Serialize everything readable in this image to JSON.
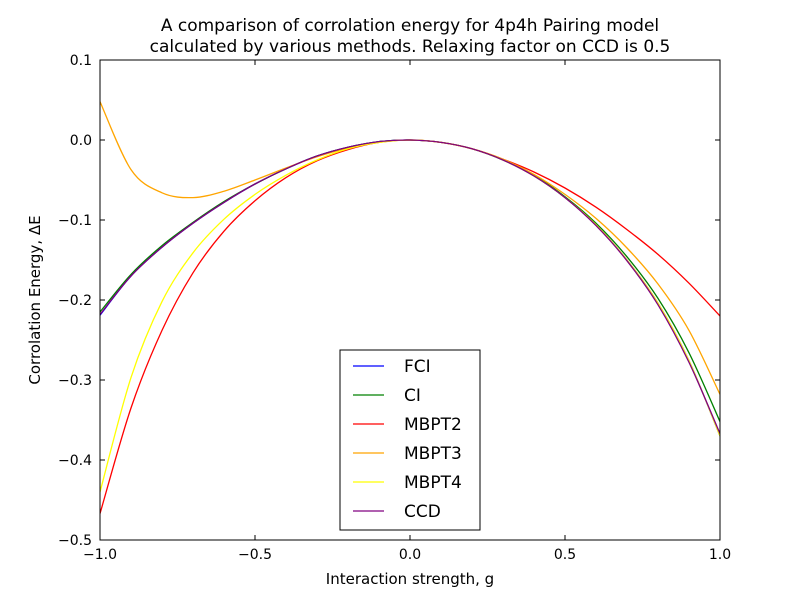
{
  "chart_data": {
    "type": "line",
    "title": [
      "A comparison of corrolation energy for 4p4h Pairing model",
      "calculated by various methods. Relaxing factor on CCD is 0.5"
    ],
    "xlabel": "Interaction strength, g",
    "ylabel": "Corrolation Energy, ΔE",
    "xlim": [
      -1.0,
      1.0
    ],
    "ylim": [
      -0.5,
      0.1
    ],
    "x_ticks": [
      -1.0,
      -0.5,
      0.0,
      0.5,
      1.0
    ],
    "x_tick_labels": [
      "−1.0",
      "−0.5",
      "0.0",
      "0.5",
      "1.0"
    ],
    "y_ticks": [
      0.1,
      0.0,
      -0.1,
      -0.2,
      -0.3,
      -0.4,
      -0.5
    ],
    "y_tick_labels": [
      "0.1",
      "0.0",
      "−0.1",
      "−0.2",
      "−0.3",
      "−0.4",
      "−0.5"
    ],
    "grid": false,
    "legend_position": "bottom-center",
    "x": [
      -1.0,
      -0.9,
      -0.8,
      -0.7,
      -0.6,
      -0.5,
      -0.4,
      -0.3,
      -0.2,
      -0.1,
      0.0,
      0.1,
      0.2,
      0.3,
      0.4,
      0.5,
      0.6,
      0.7,
      0.8,
      0.9,
      1.0
    ],
    "series": [
      {
        "name": "FCI",
        "color": "#0000ff",
        "values": [
          -0.219,
          -0.17,
          -0.134,
          -0.104,
          -0.078,
          -0.055,
          -0.036,
          -0.02,
          -0.009,
          -0.002,
          0.0,
          -0.003,
          -0.011,
          -0.025,
          -0.045,
          -0.072,
          -0.106,
          -0.15,
          -0.204,
          -0.276,
          -0.37
        ]
      },
      {
        "name": "CI",
        "color": "#008000",
        "values": [
          -0.215,
          -0.168,
          -0.132,
          -0.103,
          -0.077,
          -0.055,
          -0.036,
          -0.02,
          -0.009,
          -0.002,
          0.0,
          -0.003,
          -0.011,
          -0.025,
          -0.044,
          -0.071,
          -0.104,
          -0.146,
          -0.198,
          -0.266,
          -0.352
        ]
      },
      {
        "name": "MBPT2",
        "color": "#ff0000",
        "values": [
          -0.467,
          -0.335,
          -0.238,
          -0.166,
          -0.114,
          -0.076,
          -0.047,
          -0.026,
          -0.012,
          -0.003,
          0.0,
          -0.003,
          -0.011,
          -0.024,
          -0.04,
          -0.06,
          -0.084,
          -0.112,
          -0.143,
          -0.179,
          -0.22
        ]
      },
      {
        "name": "MBPT3",
        "color": "#ffa500",
        "values": [
          0.048,
          -0.037,
          -0.066,
          -0.072,
          -0.064,
          -0.05,
          -0.035,
          -0.021,
          -0.01,
          -0.003,
          0.0,
          -0.003,
          -0.011,
          -0.024,
          -0.043,
          -0.068,
          -0.098,
          -0.135,
          -0.18,
          -0.238,
          -0.318
        ]
      },
      {
        "name": "MBPT4",
        "color": "#ffff00",
        "values": [
          -0.44,
          -0.297,
          -0.202,
          -0.141,
          -0.099,
          -0.068,
          -0.044,
          -0.025,
          -0.011,
          -0.003,
          0.0,
          -0.003,
          -0.011,
          -0.025,
          -0.045,
          -0.072,
          -0.106,
          -0.15,
          -0.204,
          -0.276,
          -0.37
        ]
      },
      {
        "name": "CCD",
        "color": "#800080",
        "values": [
          -0.218,
          -0.17,
          -0.134,
          -0.104,
          -0.078,
          -0.055,
          -0.036,
          -0.02,
          -0.009,
          -0.002,
          0.0,
          -0.003,
          -0.011,
          -0.025,
          -0.045,
          -0.072,
          -0.107,
          -0.151,
          -0.206,
          -0.278,
          -0.367
        ]
      }
    ]
  }
}
